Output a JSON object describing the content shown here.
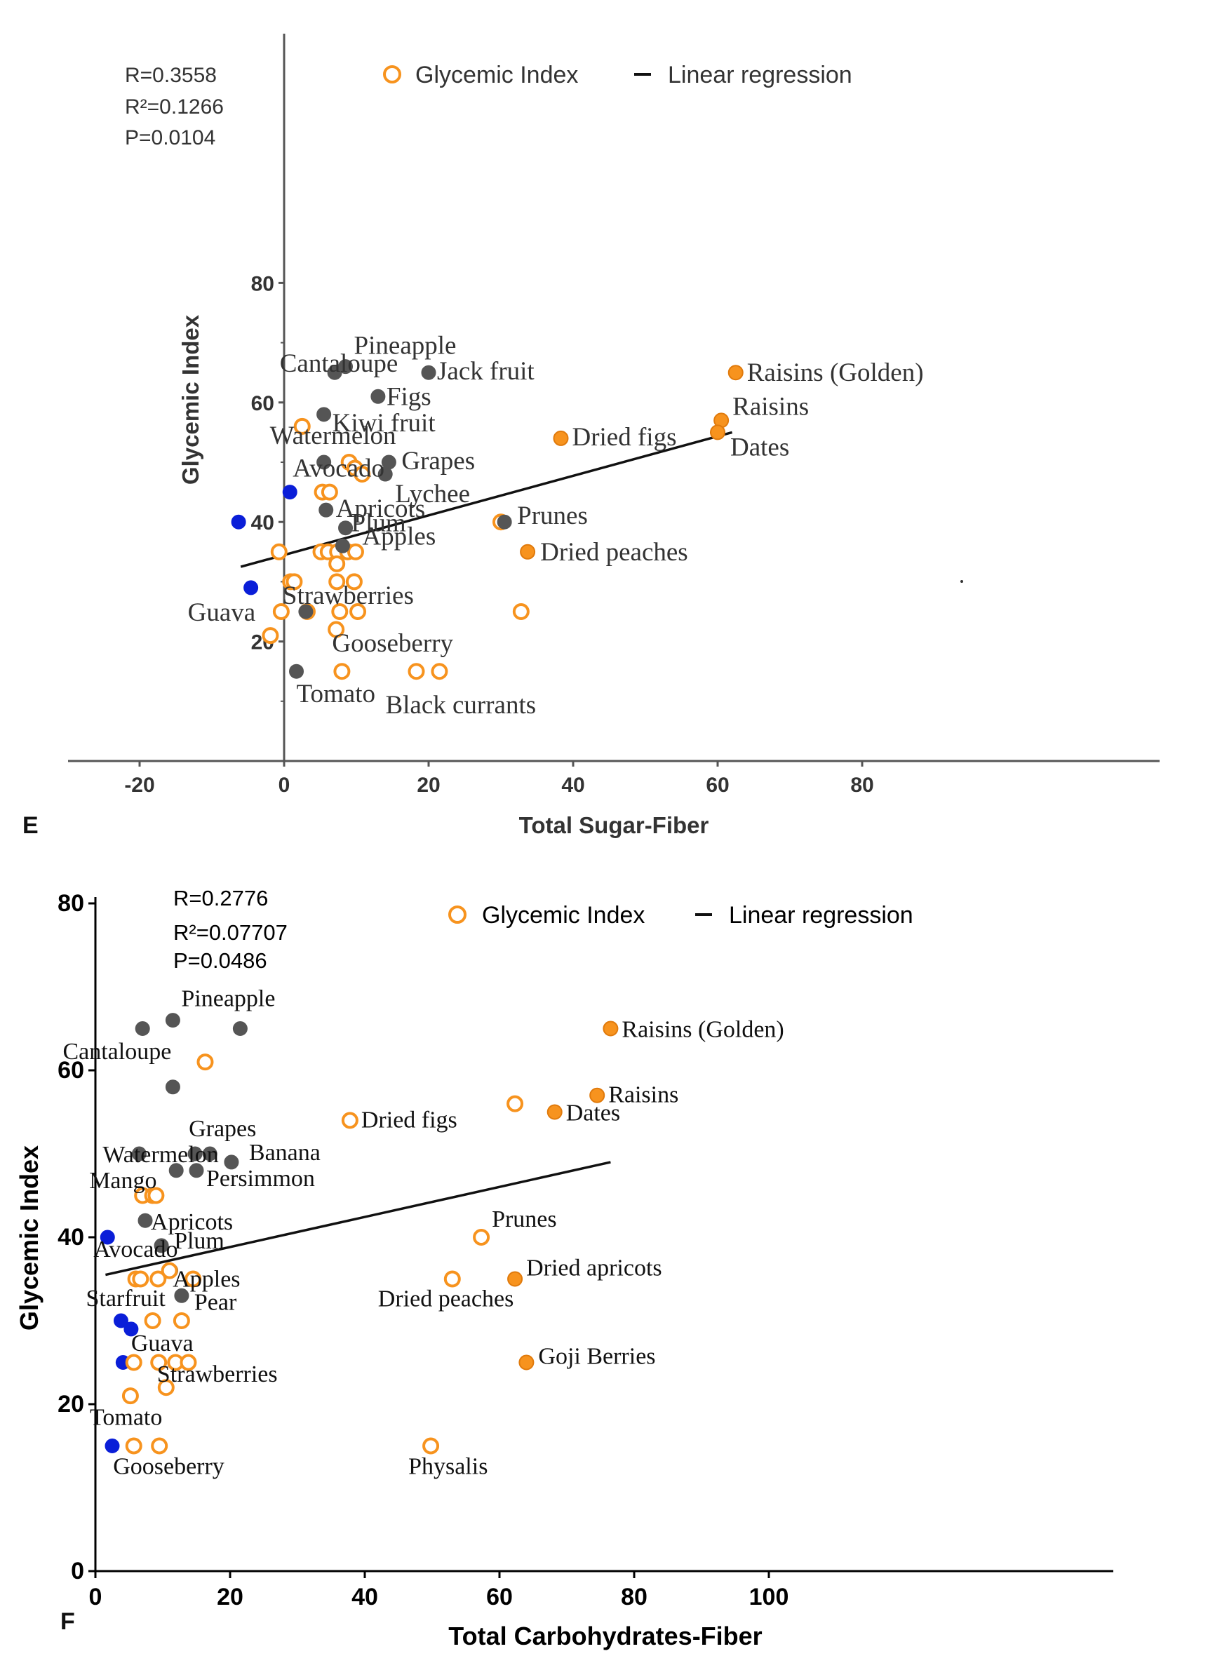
{
  "chart_data": [
    {
      "type": "scatter",
      "panel_label": "E",
      "xlabel": "Total Sugar-Fiber",
      "ylabel": "Glycemic Index",
      "xlim": [
        -20,
        80
      ],
      "ylim": [
        0,
        80
      ],
      "xticks": [
        "-20",
        "0",
        "20",
        "40",
        "60",
        "80"
      ],
      "yticks": [
        "20",
        "40",
        "60",
        "80"
      ],
      "stats": [
        "R=0.3558",
        "R²=0.1266",
        "P=0.0104"
      ],
      "legend": {
        "marker_label": "Glycemic Index",
        "line_label": "Linear regression",
        "placement": "top"
      },
      "colors": {
        "open": "#f7931e",
        "gray": "#555555",
        "blue": "#0a1ed8",
        "orange": "#f7931e",
        "line": "#111111"
      },
      "regression": [
        [
          -6,
          32.5
        ],
        [
          62,
          55
        ]
      ],
      "points": [
        {
          "x": 7,
          "y": 65,
          "kind": "gray"
        },
        {
          "x": 8.5,
          "y": 66,
          "kind": "gray",
          "label": "Pineapple"
        },
        {
          "x": 20,
          "y": 65,
          "kind": "gray",
          "label": "Jack fruit"
        },
        {
          "x": 13,
          "y": 61,
          "kind": "gray",
          "label": "Figs"
        },
        {
          "x": 5.5,
          "y": 58,
          "kind": "gray",
          "label": "Kiwi fruit"
        },
        {
          "x": 2.5,
          "y": 56,
          "kind": "open",
          "label": "Cantaloupe"
        },
        {
          "x": 5.5,
          "y": 50,
          "kind": "gray",
          "label": "Watermelon"
        },
        {
          "x": 14.5,
          "y": 50,
          "kind": "gray",
          "label": "Grapes"
        },
        {
          "x": 14,
          "y": 48,
          "kind": "gray",
          "label": "Lychee"
        },
        {
          "x": 9,
          "y": 50,
          "kind": "open"
        },
        {
          "x": 9.8,
          "y": 49,
          "kind": "open"
        },
        {
          "x": 10.8,
          "y": 48,
          "kind": "open"
        },
        {
          "x": 0.8,
          "y": 45,
          "kind": "blue",
          "label": "Avocado"
        },
        {
          "x": 5.3,
          "y": 45,
          "kind": "open"
        },
        {
          "x": 6.3,
          "y": 45,
          "kind": "open"
        },
        {
          "x": 5.8,
          "y": 42,
          "kind": "gray",
          "label": "Apricots"
        },
        {
          "x": -6.3,
          "y": 40,
          "kind": "blue"
        },
        {
          "x": 8.5,
          "y": 39,
          "kind": "gray",
          "label": "Plum"
        },
        {
          "x": -0.7,
          "y": 35,
          "kind": "open"
        },
        {
          "x": 5.1,
          "y": 35,
          "kind": "open"
        },
        {
          "x": 6.1,
          "y": 35,
          "kind": "open"
        },
        {
          "x": 7.4,
          "y": 35,
          "kind": "open"
        },
        {
          "x": 8.8,
          "y": 35,
          "kind": "open"
        },
        {
          "x": 9.9,
          "y": 35,
          "kind": "open"
        },
        {
          "x": 8.1,
          "y": 36,
          "kind": "gray",
          "label": "Apples"
        },
        {
          "x": 7.3,
          "y": 33,
          "kind": "open"
        },
        {
          "x": 0.9,
          "y": 30,
          "kind": "open"
        },
        {
          "x": 1.4,
          "y": 30,
          "kind": "open"
        },
        {
          "x": 7.3,
          "y": 30,
          "kind": "open"
        },
        {
          "x": 9.7,
          "y": 30,
          "kind": "open"
        },
        {
          "x": -4.6,
          "y": 29,
          "kind": "blue",
          "label": "Guava"
        },
        {
          "x": -0.4,
          "y": 25,
          "kind": "open"
        },
        {
          "x": 3.2,
          "y": 25,
          "kind": "open"
        },
        {
          "x": 3,
          "y": 25,
          "kind": "gray",
          "label": "Strawberries"
        },
        {
          "x": 7.7,
          "y": 25,
          "kind": "open"
        },
        {
          "x": 10.2,
          "y": 25,
          "kind": "open"
        },
        {
          "x": 32.8,
          "y": 25,
          "kind": "open"
        },
        {
          "x": -1.9,
          "y": 21,
          "kind": "open"
        },
        {
          "x": 7.2,
          "y": 22,
          "kind": "open"
        },
        {
          "x": 1.7,
          "y": 15,
          "kind": "gray",
          "label": "Tomato"
        },
        {
          "x": 8,
          "y": 15,
          "kind": "open",
          "label": "Gooseberry"
        },
        {
          "x": 18.3,
          "y": 15,
          "kind": "open"
        },
        {
          "x": 21.5,
          "y": 15,
          "kind": "open",
          "label": "Black currants"
        },
        {
          "x": 62.5,
          "y": 65,
          "kind": "orange",
          "label": "Raisins (Golden)"
        },
        {
          "x": 60.5,
          "y": 57,
          "kind": "orange",
          "label": "Raisins"
        },
        {
          "x": 60,
          "y": 55,
          "kind": "orange",
          "label": "Dates"
        },
        {
          "x": 38.3,
          "y": 54,
          "kind": "orange",
          "label": "Dried figs"
        },
        {
          "x": 30,
          "y": 40,
          "kind": "open"
        },
        {
          "x": 30.5,
          "y": 40,
          "kind": "gray",
          "label": "Prunes"
        },
        {
          "x": 33.7,
          "y": 35,
          "kind": "orange",
          "label": "Dried peaches"
        }
      ]
    },
    {
      "type": "scatter",
      "panel_label": "F",
      "xlabel": "Total Carbohydrates-Fiber",
      "ylabel": "Glycemic Index",
      "xlim": [
        0,
        100
      ],
      "ylim": [
        0,
        80
      ],
      "xticks": [
        "0",
        "20",
        "40",
        "60",
        "80",
        "100"
      ],
      "yticks": [
        "0",
        "20",
        "40",
        "60",
        "80"
      ],
      "stats": [
        "R=0.2776",
        "R²=0.07707",
        "P=0.0486"
      ],
      "legend": {
        "marker_label": "Glycemic Index",
        "line_label": "Linear regression",
        "placement": "top"
      },
      "colors": {
        "open": "#f7931e",
        "gray": "#555555",
        "blue": "#0a1ed8",
        "orange": "#f7931e",
        "line": "#111111"
      },
      "regression": [
        [
          1.5,
          35.5
        ],
        [
          76.5,
          49
        ]
      ],
      "points": [
        {
          "x": 7,
          "y": 65,
          "kind": "gray"
        },
        {
          "x": 11.5,
          "y": 66,
          "kind": "gray",
          "label": "Pineapple"
        },
        {
          "x": 21.5,
          "y": 65,
          "kind": "gray"
        },
        {
          "x": 16.3,
          "y": 61,
          "kind": "open",
          "label": "Cantaloupe"
        },
        {
          "x": 11.5,
          "y": 58,
          "kind": "gray"
        },
        {
          "x": 6.5,
          "y": 50,
          "kind": "gray",
          "label": "Watermelon"
        },
        {
          "x": 14.8,
          "y": 50,
          "kind": "gray",
          "label": "Grapes"
        },
        {
          "x": 17,
          "y": 50,
          "kind": "gray"
        },
        {
          "x": 20.2,
          "y": 49,
          "kind": "gray",
          "label": "Banana"
        },
        {
          "x": 12,
          "y": 48,
          "kind": "gray",
          "label": "Mango"
        },
        {
          "x": 15,
          "y": 48,
          "kind": "gray",
          "label": "Persimmon"
        },
        {
          "x": 7,
          "y": 45,
          "kind": "open"
        },
        {
          "x": 8.5,
          "y": 45,
          "kind": "open"
        },
        {
          "x": 9,
          "y": 45,
          "kind": "open"
        },
        {
          "x": 7.4,
          "y": 42,
          "kind": "gray",
          "label": "Apricots"
        },
        {
          "x": 1.8,
          "y": 40,
          "kind": "blue",
          "label": "Avocado"
        },
        {
          "x": 9.8,
          "y": 39,
          "kind": "gray",
          "label": "Plum"
        },
        {
          "x": 6,
          "y": 35,
          "kind": "open"
        },
        {
          "x": 6.7,
          "y": 35,
          "kind": "open"
        },
        {
          "x": 9.3,
          "y": 35,
          "kind": "open"
        },
        {
          "x": 11.2,
          "y": 36,
          "kind": "gray"
        },
        {
          "x": 11,
          "y": 36,
          "kind": "open"
        },
        {
          "x": 14.5,
          "y": 35,
          "kind": "open",
          "label": "Apples"
        },
        {
          "x": 8.5,
          "y": 30,
          "kind": "open"
        },
        {
          "x": 12.8,
          "y": 33,
          "kind": "gray",
          "label": "Pear"
        },
        {
          "x": 12.8,
          "y": 30,
          "kind": "open"
        },
        {
          "x": 3.8,
          "y": 30,
          "kind": "blue",
          "label": "Starfruit"
        },
        {
          "x": 5.3,
          "y": 29,
          "kind": "blue",
          "label": "Guava"
        },
        {
          "x": 4.1,
          "y": 25,
          "kind": "blue"
        },
        {
          "x": 5.7,
          "y": 25,
          "kind": "open"
        },
        {
          "x": 9.4,
          "y": 25,
          "kind": "open"
        },
        {
          "x": 11.9,
          "y": 25,
          "kind": "open"
        },
        {
          "x": 13.8,
          "y": 25,
          "kind": "open"
        },
        {
          "x": 10.5,
          "y": 22,
          "kind": "open",
          "label": "Strawberries"
        },
        {
          "x": 5.2,
          "y": 21,
          "kind": "open"
        },
        {
          "x": 2.5,
          "y": 15,
          "kind": "blue",
          "label": "Tomato"
        },
        {
          "x": 5.7,
          "y": 15,
          "kind": "open"
        },
        {
          "x": 9.5,
          "y": 15,
          "kind": "open",
          "label": "Gooseberry"
        },
        {
          "x": 49.8,
          "y": 15,
          "kind": "open",
          "label": "Physalis"
        },
        {
          "x": 76.5,
          "y": 65,
          "kind": "orange",
          "label": "Raisins (Golden)"
        },
        {
          "x": 74.5,
          "y": 57,
          "kind": "orange",
          "label": "Raisins"
        },
        {
          "x": 62.3,
          "y": 56,
          "kind": "open"
        },
        {
          "x": 68.2,
          "y": 55,
          "kind": "orange",
          "label": "Dates"
        },
        {
          "x": 37.8,
          "y": 54,
          "kind": "open",
          "label": "Dried figs"
        },
        {
          "x": 57.3,
          "y": 40,
          "kind": "open",
          "label": "Prunes"
        },
        {
          "x": 62.3,
          "y": 35,
          "kind": "orange",
          "label": "Dried apricots"
        },
        {
          "x": 53,
          "y": 35,
          "kind": "open",
          "label": "Dried peaches"
        },
        {
          "x": 64,
          "y": 25,
          "kind": "orange",
          "label": "Goji Berries"
        }
      ]
    }
  ]
}
